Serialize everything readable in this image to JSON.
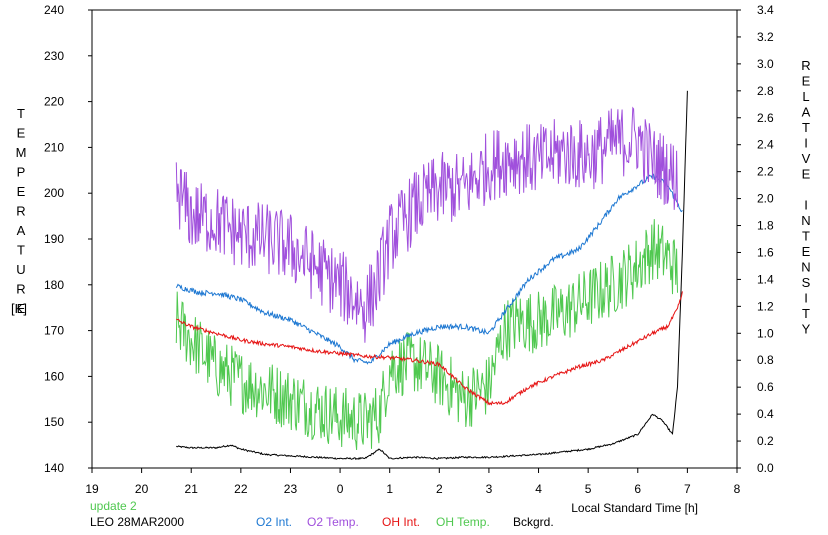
{
  "chart_data": {
    "type": "line",
    "xlabel": "Local Standard Time [h]",
    "ylabel_left": "TEMPERATURE",
    "ylabel_left_unit": "[K]",
    "ylabel_right": "RELATIVE INTENSITY",
    "xlim": [
      19,
      32
    ],
    "x_ticks": [
      19,
      20,
      21,
      22,
      23,
      24,
      25,
      26,
      27,
      28,
      29,
      30,
      31,
      32
    ],
    "x_tick_labels": [
      "19",
      "20",
      "21",
      "22",
      "23",
      "0",
      "1",
      "2",
      "3",
      "4",
      "5",
      "6",
      "7",
      "8"
    ],
    "ylim_left": [
      140,
      240
    ],
    "y_left_ticks": [
      140,
      150,
      160,
      170,
      180,
      190,
      200,
      210,
      220,
      230,
      240
    ],
    "y_left_tick_labels": [
      "140",
      "150",
      "160",
      "170",
      "180",
      "190",
      "200",
      "210",
      "220",
      "230",
      "240"
    ],
    "ylim_right": [
      0,
      3.4
    ],
    "y_right_ticks": [
      0,
      0.2,
      0.4,
      0.6,
      0.8,
      1.0,
      1.2,
      1.4,
      1.6,
      1.8,
      2.0,
      2.2,
      2.4,
      2.6,
      2.8,
      3.0,
      3.2,
      3.4
    ],
    "y_right_tick_labels": [
      "0.0",
      "0.2",
      "0.4",
      "0.6",
      "0.8",
      "1.0",
      "1.2",
      "1.4",
      "1.6",
      "1.8",
      "2.0",
      "2.2",
      "2.4",
      "2.6",
      "2.8",
      "3.0",
      "3.2",
      "3.4"
    ],
    "grid": false,
    "annotations": {
      "update": "update 2",
      "station": "LEO 28MAR2000"
    },
    "series": [
      {
        "name": "O2 Int.",
        "axis": "right",
        "color": "#1e78d2",
        "noise": 0.02,
        "x": [
          20.7,
          21.2,
          21.5,
          22.0,
          22.5,
          23.0,
          23.5,
          24.0,
          24.3,
          24.6,
          25.0,
          25.5,
          26.0,
          26.5,
          27.0,
          27.3,
          27.8,
          28.3,
          28.8,
          29.2,
          29.6,
          30.0,
          30.3,
          30.6,
          30.9
        ],
        "y": [
          1.35,
          1.3,
          1.3,
          1.25,
          1.15,
          1.1,
          1.0,
          0.9,
          0.8,
          0.78,
          0.92,
          1.0,
          1.05,
          1.05,
          1.0,
          1.15,
          1.4,
          1.55,
          1.62,
          1.8,
          2.0,
          2.1,
          2.17,
          2.1,
          1.9
        ]
      },
      {
        "name": "O2 Temp.",
        "axis": "left",
        "color": "#a050dc",
        "noise": 8,
        "x": [
          20.7,
          21.0,
          21.5,
          22.0,
          22.5,
          23.0,
          23.5,
          24.0,
          24.5,
          24.7,
          25.0,
          25.5,
          26.0,
          26.5,
          27.0,
          27.5,
          28.0,
          28.5,
          29.0,
          29.5,
          30.0,
          30.3,
          30.6,
          30.8
        ],
        "y": [
          201,
          195,
          194,
          191,
          190,
          188,
          184,
          180,
          175,
          179,
          190,
          197,
          201,
          201,
          206,
          208,
          207,
          209,
          208,
          211,
          212,
          207,
          205,
          203
        ]
      },
      {
        "name": "OH Int.",
        "axis": "right",
        "color": "#e61414",
        "noise": 0.014,
        "x": [
          20.7,
          21.0,
          21.5,
          22.0,
          22.5,
          23.0,
          23.5,
          24.0,
          24.5,
          25.0,
          25.5,
          26.0,
          26.5,
          27.0,
          27.3,
          27.8,
          28.3,
          28.8,
          29.3,
          29.8,
          30.3,
          30.6,
          30.8,
          30.9
        ],
        "y": [
          1.1,
          1.05,
          1.0,
          0.95,
          0.92,
          0.9,
          0.87,
          0.85,
          0.83,
          0.82,
          0.8,
          0.77,
          0.6,
          0.48,
          0.48,
          0.6,
          0.68,
          0.75,
          0.8,
          0.9,
          1.0,
          1.05,
          1.18,
          1.3
        ]
      },
      {
        "name": "OH Temp.",
        "axis": "left",
        "color": "#50c850",
        "noise": 7,
        "x": [
          20.7,
          21.0,
          21.5,
          22.0,
          22.5,
          23.0,
          23.5,
          24.0,
          24.5,
          24.8,
          25.0,
          25.5,
          26.0,
          26.5,
          27.0,
          27.3,
          27.6,
          28.0,
          28.5,
          29.0,
          29.5,
          30.0,
          30.3,
          30.6,
          30.8
        ],
        "y": [
          172,
          168,
          162,
          159,
          157,
          155,
          153,
          151,
          150,
          152,
          162,
          163,
          160,
          155,
          158,
          170,
          172,
          172,
          174,
          177,
          180,
          184,
          188,
          186,
          183
        ]
      },
      {
        "name": "Bckgrd.",
        "axis": "right",
        "color": "#000000",
        "noise": 0.006,
        "x": [
          20.7,
          21.0,
          21.5,
          21.8,
          22.0,
          22.5,
          23.0,
          23.5,
          24.0,
          24.5,
          24.8,
          25.0,
          25.5,
          26.0,
          26.5,
          27.0,
          27.5,
          28.0,
          28.5,
          29.0,
          29.5,
          30.0,
          30.3,
          30.5,
          30.6,
          30.7,
          30.8,
          30.9,
          31.0
        ],
        "y": [
          0.16,
          0.15,
          0.15,
          0.17,
          0.14,
          0.1,
          0.09,
          0.08,
          0.07,
          0.07,
          0.14,
          0.07,
          0.08,
          0.07,
          0.08,
          0.08,
          0.09,
          0.1,
          0.12,
          0.14,
          0.18,
          0.25,
          0.4,
          0.35,
          0.3,
          0.25,
          0.6,
          1.6,
          2.8
        ]
      }
    ]
  }
}
